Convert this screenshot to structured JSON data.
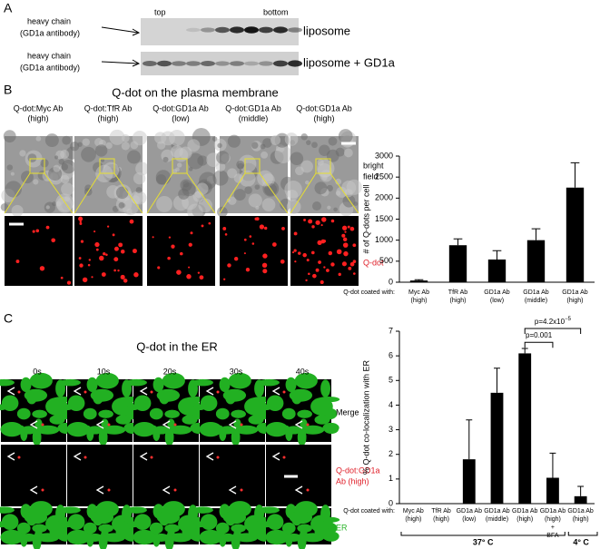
{
  "panel_a": {
    "label": "A",
    "top": "top",
    "bottom": "bottom",
    "rows": [
      {
        "antibody": [
          "heavy chain",
          "(GD1a antibody)"
        ],
        "condition": "liposome"
      },
      {
        "antibody": [
          "heavy chain",
          "(GD1a antibody)"
        ],
        "condition": "liposome + GD1a"
      }
    ]
  },
  "panel_b": {
    "label": "B",
    "title": "Q-dot on the plasma membrane",
    "columns": [
      [
        "Q-dot:Myc Ab",
        "(high)"
      ],
      [
        "Q-dot:TfR Ab",
        "(high)"
      ],
      [
        "Q-dot:GD1a Ab",
        "(low)"
      ],
      [
        "Q-dot:GD1a Ab",
        "(middle)"
      ],
      [
        "Q-dot:GD1a Ab",
        "(high)"
      ]
    ],
    "row_labels": [
      [
        "bright",
        "field"
      ],
      [
        "Q-dot"
      ]
    ]
  },
  "panel_c": {
    "label": "C",
    "title": "Q-dot in the ER",
    "times": [
      "0s",
      "10s",
      "20s",
      "30s",
      "40s"
    ],
    "row_labels": [
      [
        "Merge"
      ],
      [
        "Q-dot:GD1a",
        "Ab (high)"
      ],
      [
        "ER"
      ]
    ]
  },
  "chart_data": [
    {
      "type": "bar",
      "y_label": "# of Q-dots per cell",
      "x_label": "Q-dot coated with:",
      "categories": [
        [
          "Myc Ab",
          "(high)"
        ],
        [
          "TfR Ab",
          "(high)"
        ],
        [
          "GD1a Ab",
          "(low)"
        ],
        [
          "GD1a Ab",
          "(middle)"
        ],
        [
          "GD1a Ab",
          "(high)"
        ]
      ],
      "values": [
        40,
        880,
        540,
        1000,
        2250
      ],
      "errors": [
        20,
        150,
        210,
        270,
        590
      ],
      "color": "#000000",
      "ylim": [
        0,
        3000
      ],
      "yticks": [
        0,
        500,
        1000,
        1500,
        2000,
        2500,
        3000
      ]
    },
    {
      "type": "bar",
      "y_label": "% Q-dot co-localization with ER",
      "x_label": "Q-dot coated with:",
      "categories": [
        [
          "Myc Ab",
          "(high)"
        ],
        [
          "TfR Ab",
          "(high)"
        ],
        [
          "GD1a Ab",
          "(low)"
        ],
        [
          "GD1a Ab",
          "(middle)"
        ],
        [
          "GD1a Ab",
          "(high)"
        ],
        [
          "GD1a Ab",
          "(high)",
          "+",
          "BFA"
        ],
        [
          "GD1a Ab",
          "(high)"
        ]
      ],
      "values": [
        0,
        0,
        1.8,
        4.5,
        6.1,
        1.05,
        0.3
      ],
      "errors": [
        null,
        null,
        1.6,
        1.0,
        0.2,
        1.0,
        0.4
      ],
      "color": "#000000",
      "ylim": [
        0,
        7
      ],
      "yticks": [
        0,
        1,
        2,
        3,
        4,
        5,
        6,
        7
      ],
      "annotations": [
        {
          "text": "p=0.001"
        },
        {
          "text": "p=4.2x10",
          "superscript": "−5"
        }
      ],
      "groups": [
        "37° C",
        "4° C"
      ]
    }
  ]
}
